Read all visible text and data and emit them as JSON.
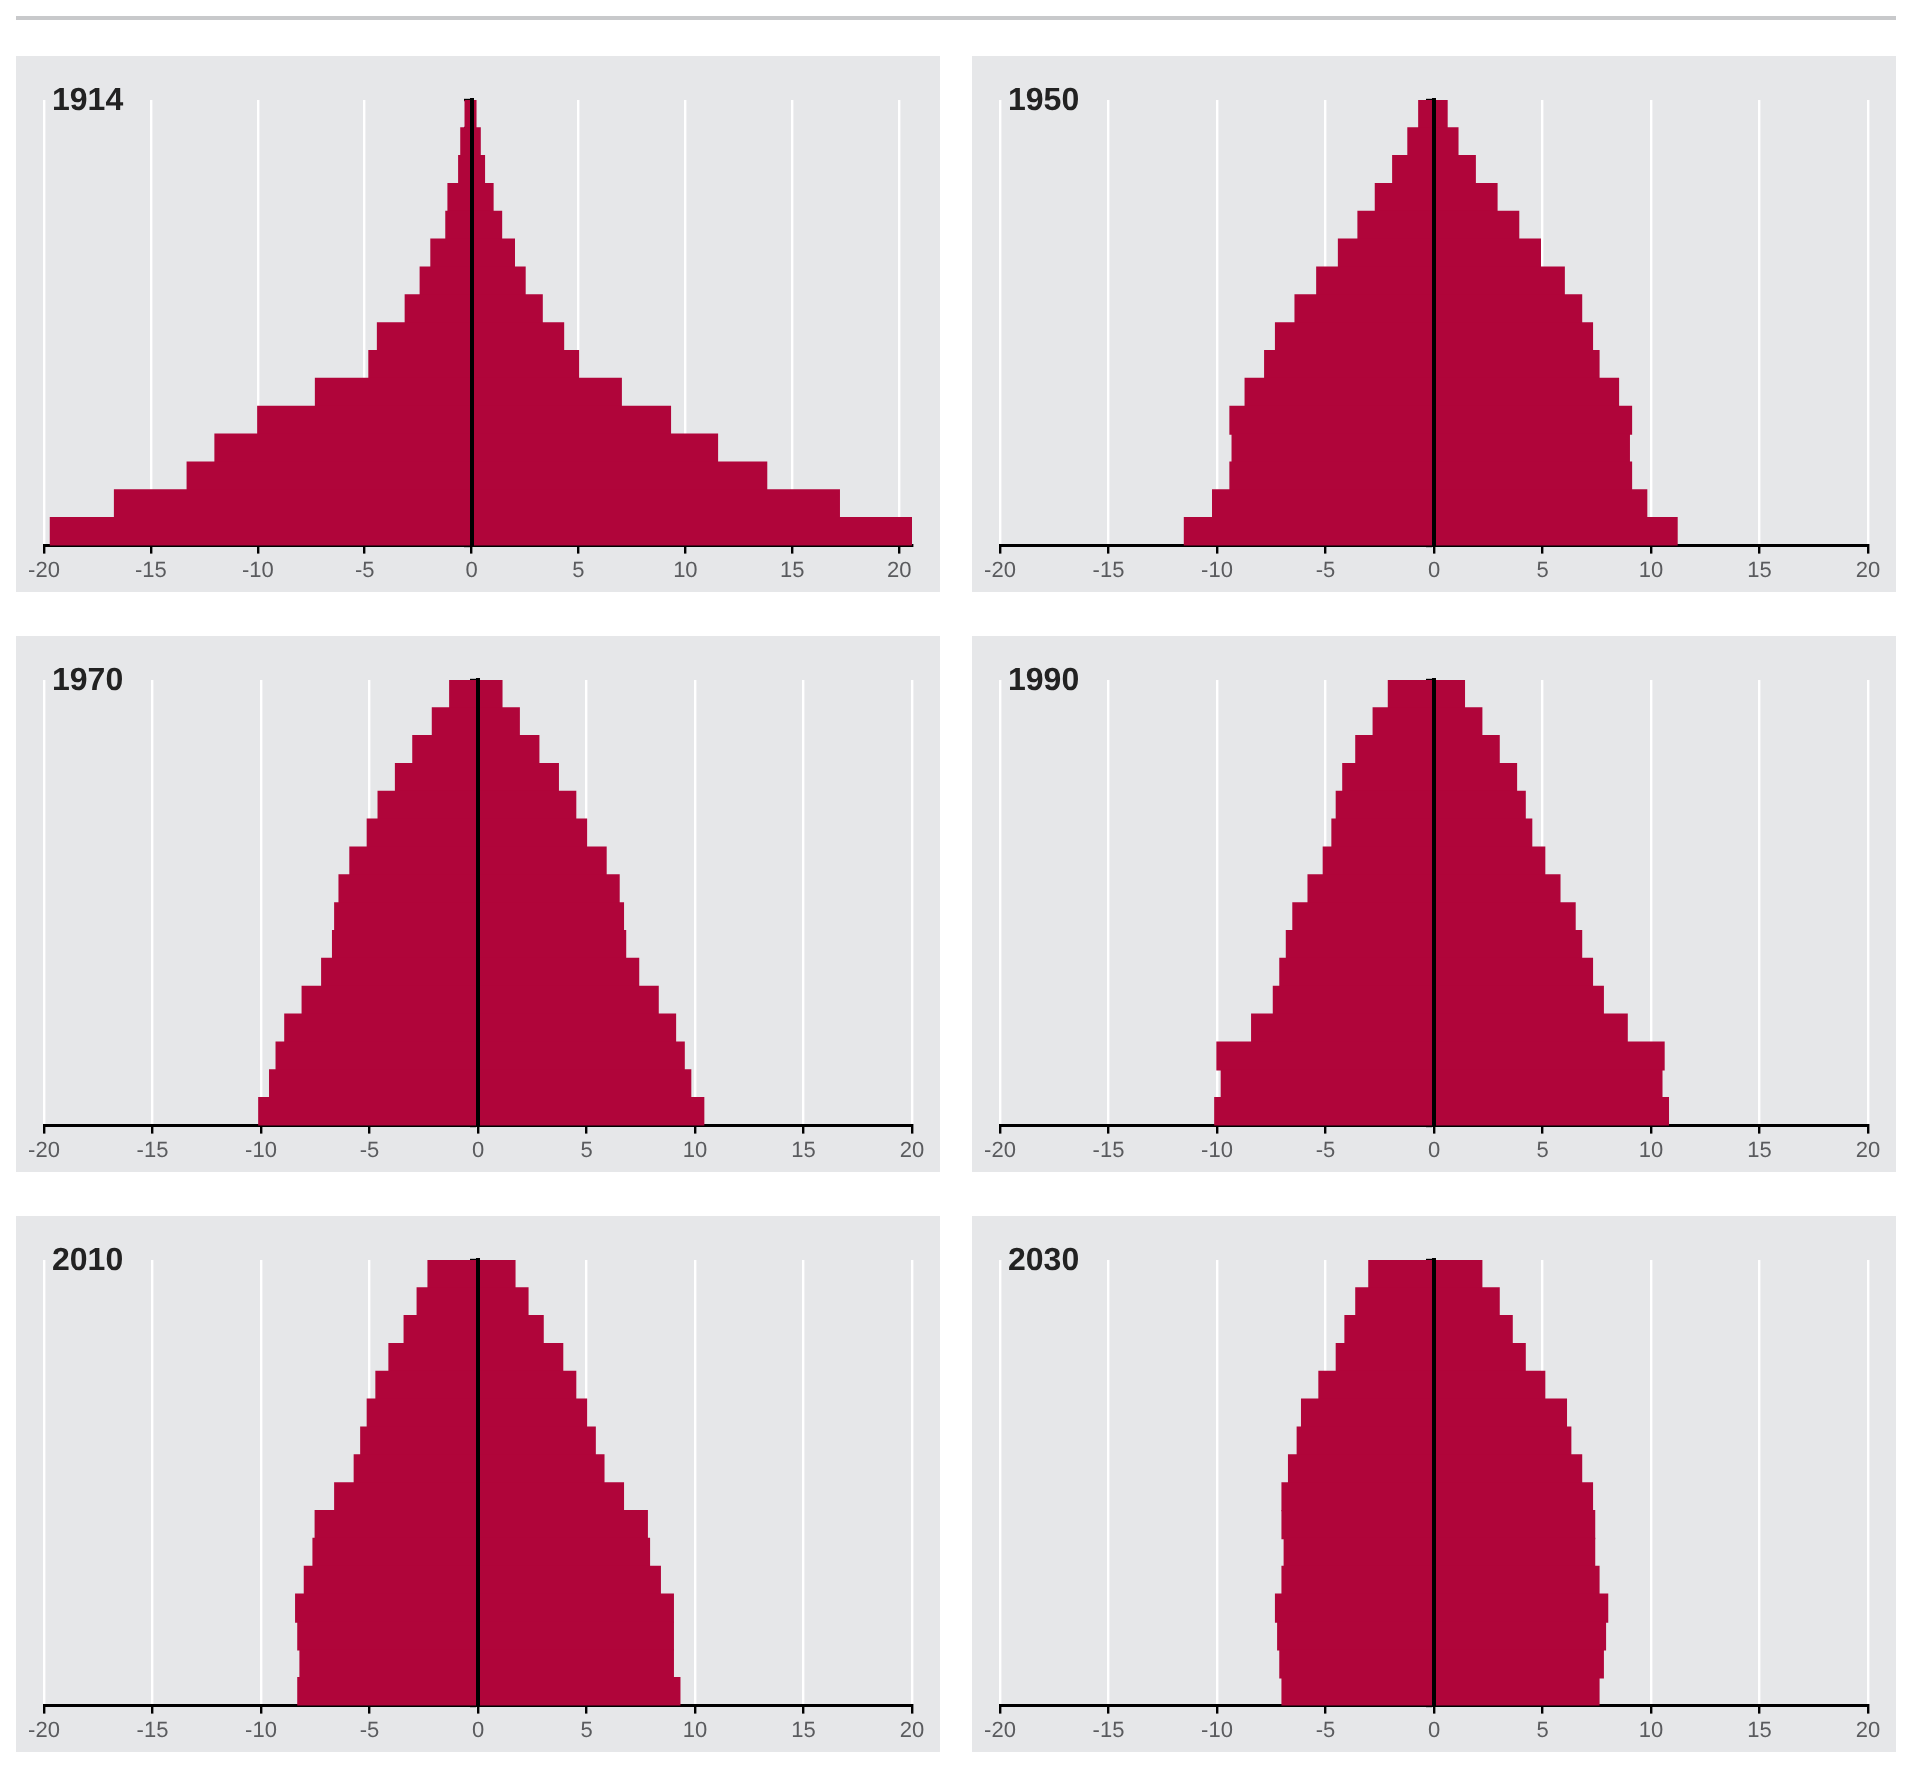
{
  "chart_data": [
    {
      "type": "bar",
      "title": "1914",
      "orientation": "horizontal",
      "stacked": true,
      "grid": "x",
      "legend": false,
      "tick_labels": "x",
      "xlim": [
        -20,
        20.6
      ],
      "xticks": [
        -20,
        -15,
        -10,
        -5,
        0,
        5,
        10,
        15,
        20
      ],
      "categories": [
        null,
        null,
        null,
        null,
        null,
        null,
        null,
        null,
        null,
        null,
        null,
        null,
        null,
        null,
        null,
        null
      ],
      "series": [
        {
          "color": "#b0053a",
          "values": [
            -0.3,
            -0.5,
            -0.6,
            -1.1,
            -1.2,
            -1.9,
            -2.4,
            -3.1,
            -4.4,
            -4.8,
            -7.3,
            -10.0,
            -12.0,
            -13.3,
            -16.7,
            -19.7
          ]
        },
        {
          "color": "#b0053a",
          "values": [
            0.2,
            0.4,
            0.6,
            1.0,
            1.4,
            2.0,
            2.5,
            3.3,
            4.3,
            5.0,
            7.0,
            9.3,
            11.5,
            13.8,
            17.2,
            20.6
          ]
        }
      ]
    },
    {
      "type": "bar",
      "title": "1950",
      "orientation": "horizontal",
      "stacked": true,
      "grid": "x",
      "legend": false,
      "tick_labels": "x",
      "xlim": [
        -20,
        20
      ],
      "xticks": [
        -20,
        -15,
        -10,
        -5,
        0,
        5,
        10,
        15,
        20
      ],
      "categories": [
        null,
        null,
        null,
        null,
        null,
        null,
        null,
        null,
        null,
        null,
        null,
        null,
        null,
        null,
        null,
        null
      ],
      "series": [
        {
          "color": "#b0053a",
          "values": [
            -0.7,
            -1.2,
            -1.9,
            -2.7,
            -3.5,
            -4.4,
            -5.4,
            -6.4,
            -7.3,
            -7.8,
            -8.7,
            -9.4,
            -9.3,
            -9.4,
            -10.2,
            -11.5
          ]
        },
        {
          "color": "#b0053a",
          "values": [
            0.6,
            1.1,
            1.9,
            2.9,
            3.9,
            4.9,
            6.0,
            6.8,
            7.3,
            7.6,
            8.5,
            9.1,
            9.0,
            9.1,
            9.8,
            11.2
          ]
        }
      ]
    },
    {
      "type": "bar",
      "title": "1970",
      "orientation": "horizontal",
      "stacked": true,
      "grid": "x",
      "legend": false,
      "tick_labels": "x",
      "xlim": [
        -20,
        20
      ],
      "xticks": [
        -20,
        -15,
        -10,
        -5,
        0,
        5,
        10,
        15,
        20
      ],
      "categories": [
        null,
        null,
        null,
        null,
        null,
        null,
        null,
        null,
        null,
        null,
        null,
        null,
        null,
        null,
        null,
        null
      ],
      "series": [
        {
          "color": "#b0053a",
          "values": [
            -1.3,
            -2.1,
            -3.0,
            -3.8,
            -4.6,
            -5.1,
            -5.9,
            -6.4,
            -6.6,
            -6.7,
            -7.2,
            -8.1,
            -8.9,
            -9.3,
            -9.6,
            -10.1
          ]
        },
        {
          "color": "#b0053a",
          "values": [
            1.1,
            1.9,
            2.8,
            3.7,
            4.5,
            5.0,
            5.9,
            6.5,
            6.7,
            6.8,
            7.4,
            8.3,
            9.1,
            9.5,
            9.8,
            10.4
          ]
        }
      ]
    },
    {
      "type": "bar",
      "title": "1990",
      "orientation": "horizontal",
      "stacked": true,
      "grid": "x",
      "legend": false,
      "tick_labels": "x",
      "xlim": [
        -20,
        20
      ],
      "xticks": [
        -20,
        -15,
        -10,
        -5,
        0,
        5,
        10,
        15,
        20
      ],
      "categories": [
        null,
        null,
        null,
        null,
        null,
        null,
        null,
        null,
        null,
        null,
        null,
        null,
        null,
        null,
        null,
        null
      ],
      "series": [
        {
          "color": "#b0053a",
          "values": [
            -2.1,
            -2.8,
            -3.6,
            -4.2,
            -4.5,
            -4.7,
            -5.1,
            -5.8,
            -6.5,
            -6.8,
            -7.1,
            -7.4,
            -8.4,
            -10.0,
            -9.8,
            -10.1
          ]
        },
        {
          "color": "#b0053a",
          "values": [
            1.4,
            2.2,
            3.0,
            3.8,
            4.2,
            4.5,
            5.1,
            5.8,
            6.5,
            6.8,
            7.3,
            7.8,
            8.9,
            10.6,
            10.5,
            10.8
          ]
        }
      ]
    },
    {
      "type": "bar",
      "title": "2010",
      "orientation": "horizontal",
      "stacked": true,
      "grid": "x",
      "legend": false,
      "tick_labels": "x",
      "xlim": [
        -20,
        20
      ],
      "xticks": [
        -20,
        -15,
        -10,
        -5,
        0,
        5,
        10,
        15,
        20
      ],
      "categories": [
        null,
        null,
        null,
        null,
        null,
        null,
        null,
        null,
        null,
        null,
        null,
        null,
        null,
        null,
        null,
        null
      ],
      "series": [
        {
          "color": "#b0053a",
          "values": [
            -2.3,
            -2.8,
            -3.4,
            -4.1,
            -4.7,
            -5.1,
            -5.4,
            -5.7,
            -6.6,
            -7.5,
            -7.6,
            -8.0,
            -8.4,
            -8.3,
            -8.2,
            -8.3
          ]
        },
        {
          "color": "#b0053a",
          "values": [
            1.7,
            2.3,
            3.0,
            3.9,
            4.5,
            5.0,
            5.4,
            5.8,
            6.7,
            7.8,
            7.9,
            8.4,
            9.0,
            9.0,
            9.0,
            9.3
          ]
        }
      ]
    },
    {
      "type": "bar",
      "title": "2030",
      "orientation": "horizontal",
      "stacked": true,
      "grid": "x",
      "legend": false,
      "tick_labels": "x",
      "xlim": [
        -20,
        20
      ],
      "xticks": [
        -20,
        -15,
        -10,
        -5,
        0,
        5,
        10,
        15,
        20
      ],
      "categories": [
        null,
        null,
        null,
        null,
        null,
        null,
        null,
        null,
        null,
        null,
        null,
        null,
        null,
        null,
        null,
        null
      ],
      "series": [
        {
          "color": "#b0053a",
          "values": [
            -3.0,
            -3.6,
            -4.1,
            -4.5,
            -5.3,
            -6.1,
            -6.3,
            -6.7,
            -7.0,
            -7.0,
            -6.9,
            -7.0,
            -7.3,
            -7.2,
            -7.1,
            -7.0
          ]
        },
        {
          "color": "#b0053a",
          "values": [
            2.2,
            3.0,
            3.6,
            4.2,
            5.1,
            6.1,
            6.3,
            6.8,
            7.3,
            7.4,
            7.4,
            7.6,
            8.0,
            7.9,
            7.8,
            7.6
          ]
        }
      ]
    }
  ]
}
